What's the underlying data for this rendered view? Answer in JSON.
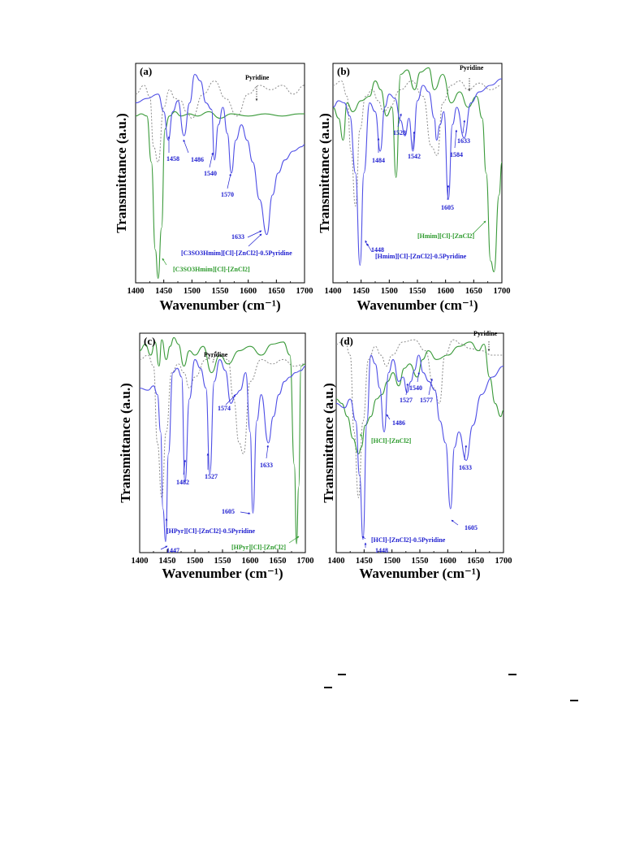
{
  "colors": {
    "blue": "#4f4fe6",
    "green": "#3a9a3a",
    "pyridine": "#8c8c8c",
    "annot_blue": "#2020d0",
    "annot_green": "#2c9a2c"
  },
  "chart_data": [
    {
      "type": "line",
      "panel_label": "(a)",
      "xlabel": "Wavenumber (cm⁻¹)",
      "ylabel": "Transmittance (a.u.)",
      "xlim": [
        1400,
        1700
      ],
      "xticks": [
        1400,
        1450,
        1500,
        1550,
        1600,
        1650,
        1700
      ],
      "series": [
        {
          "name": "[C3SO3Hmim][Cl]-[ZnCl2]-0.5Pyridine",
          "color": "blue",
          "x": [
            1400,
            1420,
            1440,
            1450,
            1458,
            1466,
            1475,
            1486,
            1496,
            1505,
            1515,
            1525,
            1535,
            1540,
            1547,
            1555,
            1563,
            1570,
            1578,
            1588,
            1598,
            1608,
            1620,
            1633,
            1643,
            1653,
            1665,
            1680,
            1695,
            1700
          ],
          "y": [
            0.82,
            0.84,
            0.86,
            0.78,
            0.65,
            0.78,
            0.83,
            0.67,
            0.82,
            0.95,
            0.92,
            0.82,
            0.79,
            0.56,
            0.72,
            0.8,
            0.68,
            0.5,
            0.65,
            0.72,
            0.65,
            0.55,
            0.38,
            0.22,
            0.4,
            0.5,
            0.56,
            0.6,
            0.62,
            0.63
          ]
        },
        {
          "name": "[C3SO3Hmim][Cl]-[ZnCl2]",
          "color": "green",
          "x": [
            1400,
            1410,
            1420,
            1428,
            1435,
            1440,
            1446,
            1452,
            1460,
            1470,
            1480,
            1495,
            1510,
            1530,
            1550,
            1570,
            1600,
            1630,
            1660,
            1690,
            1700
          ],
          "y": [
            0.76,
            0.77,
            0.76,
            0.55,
            0.15,
            0.02,
            0.25,
            0.7,
            0.76,
            0.78,
            0.76,
            0.77,
            0.76,
            0.78,
            0.75,
            0.77,
            0.76,
            0.77,
            0.76,
            0.77,
            0.77
          ]
        },
        {
          "name": "Pyridine",
          "color": "pyridine",
          "x": [
            1400,
            1415,
            1425,
            1432,
            1440,
            1450,
            1460,
            1470,
            1480,
            1490,
            1500,
            1520,
            1540,
            1560,
            1580,
            1600,
            1620,
            1640,
            1660,
            1680,
            1700
          ],
          "y": [
            0.86,
            0.9,
            0.85,
            0.62,
            0.55,
            0.8,
            0.88,
            0.84,
            0.83,
            0.78,
            0.75,
            0.86,
            0.92,
            0.84,
            0.76,
            0.86,
            0.9,
            0.88,
            0.9,
            0.86,
            0.9
          ]
        }
      ],
      "annotations": [
        {
          "text": "1458",
          "x": 1458,
          "color": "blue"
        },
        {
          "text": "1486",
          "x": 1486,
          "color": "blue"
        },
        {
          "text": "1540",
          "x": 1540,
          "color": "blue"
        },
        {
          "text": "1570",
          "x": 1570,
          "color": "blue"
        },
        {
          "text": "1633",
          "x": 1633,
          "color": "blue"
        },
        {
          "text": "Pyridine",
          "color": "black"
        },
        {
          "text": "[C3SO3Hmim][Cl]-[ZnCl2]-0.5Pyridine",
          "color": "blue"
        },
        {
          "text": "[C3SO3Hmim][Cl]-[ZnCl2]",
          "color": "green"
        }
      ]
    },
    {
      "type": "line",
      "panel_label": "(b)",
      "xlabel": "Wavenumber (cm⁻¹)",
      "ylabel": "Transmittance (a.u.)",
      "xlim": [
        1400,
        1700
      ],
      "xticks": [
        1400,
        1450,
        1500,
        1550,
        1600,
        1650,
        1700
      ],
      "series": [
        {
          "name": "[Hmim][Cl]-[ZnCl2]-0.5Pyridine",
          "color": "blue",
          "x": [
            1400,
            1410,
            1420,
            1430,
            1440,
            1448,
            1455,
            1465,
            1475,
            1484,
            1492,
            1500,
            1510,
            1520,
            1528,
            1535,
            1542,
            1550,
            1560,
            1570,
            1580,
            1584,
            1590,
            1597,
            1605,
            1612,
            1620,
            1633,
            1645,
            1660,
            1680,
            1700
          ],
          "y": [
            0.8,
            0.83,
            0.82,
            0.76,
            0.5,
            0.08,
            0.5,
            0.82,
            0.78,
            0.6,
            0.8,
            0.86,
            0.84,
            0.74,
            0.67,
            0.75,
            0.6,
            0.83,
            0.9,
            0.87,
            0.75,
            0.65,
            0.72,
            0.78,
            0.38,
            0.72,
            0.8,
            0.66,
            0.82,
            0.87,
            0.9,
            0.93
          ]
        },
        {
          "name": "[Hmim][Cl]-[ZnCl2]",
          "color": "green",
          "x": [
            1400,
            1410,
            1418,
            1425,
            1435,
            1450,
            1465,
            1475,
            1485,
            1495,
            1505,
            1512,
            1520,
            1532,
            1545,
            1555,
            1570,
            1580,
            1595,
            1610,
            1625,
            1640,
            1655,
            1665,
            1672,
            1680,
            1686,
            1695,
            1700
          ],
          "y": [
            0.8,
            0.75,
            0.65,
            0.82,
            0.78,
            0.83,
            0.85,
            0.92,
            0.88,
            0.76,
            0.8,
            0.48,
            0.95,
            0.97,
            0.88,
            0.96,
            0.98,
            0.88,
            0.95,
            0.82,
            0.87,
            0.8,
            0.85,
            0.75,
            0.5,
            0.1,
            0.05,
            0.4,
            0.55
          ]
        },
        {
          "name": "Pyridine",
          "color": "pyridine",
          "x": [
            1400,
            1415,
            1425,
            1432,
            1440,
            1448,
            1458,
            1470,
            1480,
            1490,
            1500,
            1520,
            1540,
            1560,
            1575,
            1585,
            1595,
            1610,
            1625,
            1640,
            1660,
            1680,
            1700
          ],
          "y": [
            0.9,
            0.92,
            0.85,
            0.6,
            0.35,
            0.7,
            0.85,
            0.88,
            0.83,
            0.78,
            0.8,
            0.88,
            0.92,
            0.85,
            0.62,
            0.58,
            0.82,
            0.9,
            0.92,
            0.88,
            0.91,
            0.88,
            0.9
          ]
        }
      ],
      "annotations": [
        {
          "text": "1448",
          "x": 1448,
          "color": "blue"
        },
        {
          "text": "1484",
          "x": 1484,
          "color": "blue"
        },
        {
          "text": "1528",
          "x": 1528,
          "color": "blue"
        },
        {
          "text": "1542",
          "x": 1542,
          "color": "blue"
        },
        {
          "text": "1584",
          "x": 1584,
          "color": "blue"
        },
        {
          "text": "1605",
          "x": 1605,
          "color": "blue"
        },
        {
          "text": "1633",
          "x": 1633,
          "color": "blue"
        },
        {
          "text": "Pyridine",
          "color": "black"
        },
        {
          "text": "[Hmim][Cl]-[ZnCl2]-0.5Pyridine",
          "color": "blue"
        },
        {
          "text": "[Hmim][Cl]-[ZnCl2]",
          "color": "green"
        }
      ]
    },
    {
      "type": "line",
      "panel_label": "(c)",
      "xlabel": "Wavenumber (cm⁻¹)",
      "ylabel": "Transmittance (a.u.)",
      "xlim": [
        1400,
        1700
      ],
      "xticks": [
        1400,
        1450,
        1500,
        1550,
        1600,
        1650,
        1700
      ],
      "series": [
        {
          "name": "[HPyr][Cl]-[ZnCl2]-0.5Pyridine",
          "color": "blue",
          "x": [
            1400,
            1415,
            1425,
            1432,
            1438,
            1442,
            1447,
            1452,
            1460,
            1468,
            1476,
            1482,
            1490,
            1500,
            1510,
            1520,
            1527,
            1535,
            1545,
            1555,
            1565,
            1574,
            1582,
            1592,
            1600,
            1605,
            1612,
            1620,
            1633,
            1642,
            1652,
            1662,
            1672,
            1682,
            1692,
            1700
          ],
          "y": [
            0.75,
            0.74,
            0.76,
            0.72,
            0.55,
            0.2,
            0.05,
            0.45,
            0.82,
            0.84,
            0.8,
            0.32,
            0.7,
            0.88,
            0.84,
            0.75,
            0.36,
            0.78,
            0.88,
            0.83,
            0.68,
            0.72,
            0.74,
            0.82,
            0.55,
            0.18,
            0.6,
            0.72,
            0.5,
            0.62,
            0.72,
            0.78,
            0.8,
            0.82,
            0.83,
            0.85
          ]
        },
        {
          "name": "[HPyr][Cl]-[ZnCl2]",
          "color": "green",
          "x": [
            1400,
            1410,
            1420,
            1428,
            1435,
            1440,
            1448,
            1455,
            1462,
            1470,
            1480,
            1490,
            1500,
            1515,
            1530,
            1545,
            1560,
            1580,
            1600,
            1620,
            1640,
            1660,
            1672,
            1680,
            1684,
            1688,
            1692,
            1700
          ],
          "y": [
            0.92,
            0.95,
            0.9,
            0.96,
            0.85,
            0.97,
            0.88,
            0.94,
            0.98,
            0.95,
            0.85,
            0.92,
            0.9,
            0.94,
            0.82,
            0.9,
            0.86,
            0.92,
            0.94,
            0.9,
            0.95,
            0.96,
            0.9,
            0.4,
            0.04,
            0.3,
            0.85,
            0.86
          ]
        },
        {
          "name": "Pyridine",
          "color": "pyridine",
          "x": [
            1400,
            1415,
            1425,
            1432,
            1440,
            1448,
            1458,
            1470,
            1480,
            1490,
            1500,
            1520,
            1540,
            1560,
            1570,
            1580,
            1588,
            1600,
            1620,
            1640,
            1660,
            1680,
            1700
          ],
          "y": [
            0.88,
            0.9,
            0.85,
            0.5,
            0.25,
            0.55,
            0.82,
            0.86,
            0.82,
            0.75,
            0.8,
            0.88,
            0.9,
            0.88,
            0.7,
            0.5,
            0.45,
            0.78,
            0.88,
            0.86,
            0.88,
            0.85,
            0.86
          ]
        }
      ],
      "annotations": [
        {
          "text": "1447",
          "x": 1447,
          "color": "blue"
        },
        {
          "text": "1482",
          "x": 1482,
          "color": "blue"
        },
        {
          "text": "1527",
          "x": 1527,
          "color": "blue"
        },
        {
          "text": "1574",
          "x": 1574,
          "color": "blue"
        },
        {
          "text": "1605",
          "x": 1605,
          "color": "blue"
        },
        {
          "text": "1633",
          "x": 1633,
          "color": "blue"
        },
        {
          "text": "Pyridine",
          "color": "black"
        },
        {
          "text": "[HPyr][Cl]-[ZnCl2]-0.5Pyridine",
          "color": "blue"
        },
        {
          "text": "[HPyr][Cl]-[ZnCl2]",
          "color": "green"
        }
      ]
    },
    {
      "type": "line",
      "panel_label": "(d)",
      "xlabel": "Wavenumber (cm⁻¹)",
      "ylabel": "Transmittance (a.u.)",
      "xlim": [
        1400,
        1700
      ],
      "xticks": [
        1400,
        1450,
        1500,
        1550,
        1600,
        1650,
        1700
      ],
      "series": [
        {
          "name": "[HCl]-[ZnCl2]-0.5Pyridine",
          "color": "blue",
          "x": [
            1400,
            1415,
            1425,
            1435,
            1442,
            1448,
            1455,
            1462,
            1470,
            1478,
            1486,
            1494,
            1502,
            1512,
            1520,
            1527,
            1534,
            1540,
            1548,
            1556,
            1566,
            1577,
            1586,
            1596,
            1605,
            1612,
            1620,
            1633,
            1645,
            1660,
            1680,
            1700
          ],
          "y": [
            0.68,
            0.66,
            0.7,
            0.6,
            0.35,
            0.06,
            0.6,
            0.9,
            0.86,
            0.75,
            0.55,
            0.82,
            0.88,
            0.78,
            0.8,
            0.73,
            0.78,
            0.83,
            0.9,
            0.82,
            0.78,
            0.74,
            0.6,
            0.5,
            0.2,
            0.48,
            0.55,
            0.42,
            0.58,
            0.72,
            0.8,
            0.85
          ]
        },
        {
          "name": "[HCl]-[ZnCl2]",
          "color": "green",
          "x": [
            1400,
            1410,
            1420,
            1430,
            1440,
            1445,
            1452,
            1462,
            1472,
            1482,
            1492,
            1502,
            1512,
            1522,
            1532,
            1545,
            1555,
            1565,
            1580,
            1600,
            1620,
            1640,
            1655,
            1665,
            1675,
            1685,
            1695,
            1700
          ],
          "y": [
            0.7,
            0.68,
            0.62,
            0.52,
            0.45,
            0.48,
            0.58,
            0.62,
            0.7,
            0.72,
            0.78,
            0.82,
            0.76,
            0.84,
            0.86,
            0.8,
            0.88,
            0.92,
            0.88,
            0.9,
            0.94,
            0.96,
            0.92,
            0.95,
            0.8,
            0.68,
            0.62,
            0.65
          ]
        },
        {
          "name": "Pyridine",
          "color": "pyridine",
          "x": [
            1400,
            1415,
            1425,
            1432,
            1440,
            1448,
            1458,
            1470,
            1480,
            1490,
            1500,
            1520,
            1540,
            1560,
            1575,
            1585,
            1595,
            1610,
            1625,
            1640,
            1660,
            1680,
            1700
          ],
          "y": [
            0.95,
            0.97,
            0.9,
            0.55,
            0.25,
            0.6,
            0.88,
            0.94,
            0.9,
            0.85,
            0.9,
            0.96,
            0.97,
            0.92,
            0.75,
            0.68,
            0.9,
            0.97,
            0.95,
            0.93,
            0.92,
            0.9,
            0.9
          ]
        }
      ],
      "annotations": [
        {
          "text": "1448",
          "x": 1448,
          "color": "blue"
        },
        {
          "text": "1486",
          "x": 1486,
          "color": "blue"
        },
        {
          "text": "1527",
          "x": 1527,
          "color": "blue"
        },
        {
          "text": "1540",
          "x": 1540,
          "color": "blue"
        },
        {
          "text": "1577",
          "x": 1577,
          "color": "blue"
        },
        {
          "text": "1605",
          "x": 1605,
          "color": "blue"
        },
        {
          "text": "1633",
          "x": 1633,
          "color": "blue"
        },
        {
          "text": "Pyridine",
          "color": "black"
        },
        {
          "text": "[HCl]-[ZnCl2]-0.5Pyridine",
          "color": "blue"
        },
        {
          "text": "[HCl]-[ZnCl2]",
          "color": "green"
        }
      ]
    }
  ]
}
